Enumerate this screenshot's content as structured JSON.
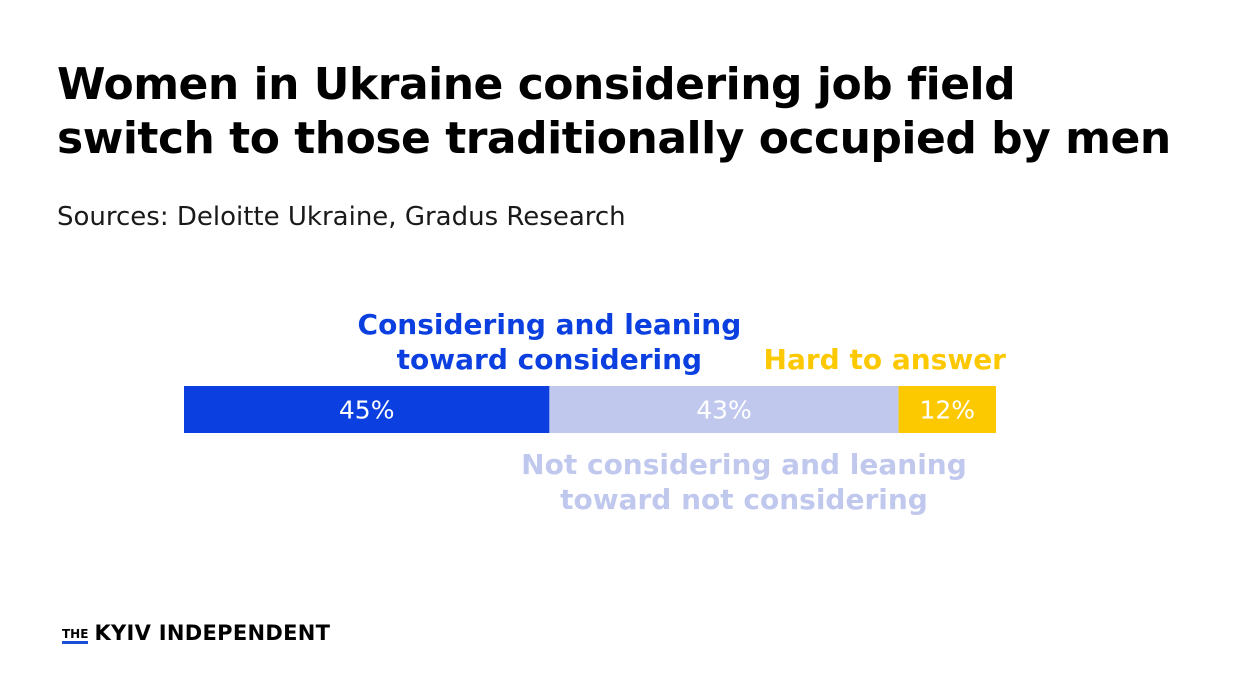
{
  "title_lines": [
    "Women in Ukraine considering job field",
    "switch to those traditionally occupied by men"
  ],
  "source": "Sources: Deloitte Ukraine, Gradus Research",
  "logo": {
    "prefix": "THE",
    "name": "KYIV INDEPENDENT"
  },
  "colors": {
    "considering": "#0b3fe0",
    "not_considering": "#c1c8ee",
    "hard_to_answer": "#fcc800"
  },
  "chart_data": {
    "type": "bar",
    "orientation": "horizontal-stacked",
    "unit": "%",
    "series": [
      {
        "name": "Considering and leaning toward considering",
        "name_lines": [
          "Considering and leaning",
          "toward considering"
        ],
        "value": 45,
        "label": "45%",
        "color": "#0b3fe0"
      },
      {
        "name": "Not considering and leaning toward not considering",
        "name_lines": [
          "Not considering and leaning",
          "toward not considering"
        ],
        "value": 43,
        "label": "43%",
        "color": "#c1c8ee"
      },
      {
        "name": "Hard to answer",
        "name_lines": [
          "Hard to answer"
        ],
        "value": 12,
        "label": "12%",
        "color": "#fcc800"
      }
    ],
    "total": 100
  }
}
